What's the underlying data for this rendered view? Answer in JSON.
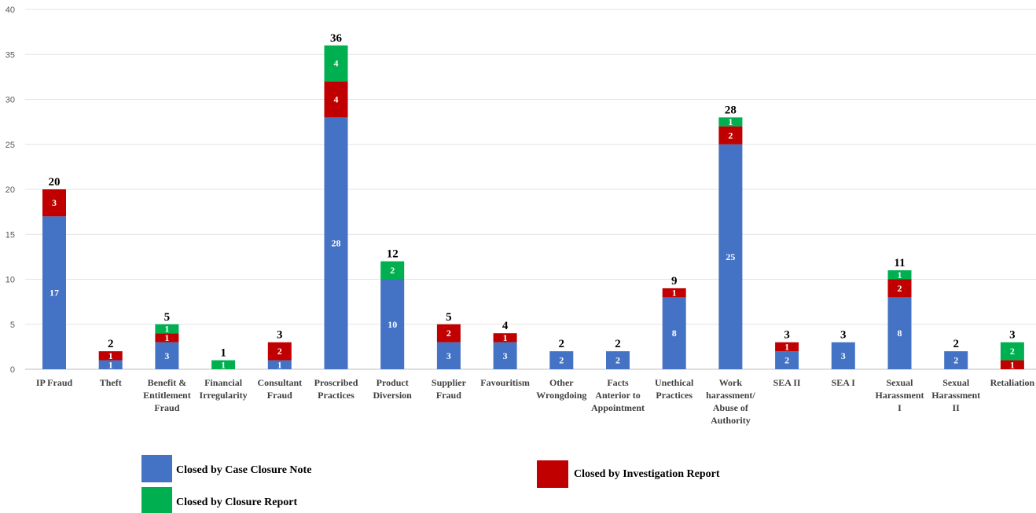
{
  "chart_data": {
    "type": "bar",
    "stacked": true,
    "title": "",
    "xlabel": "",
    "ylabel": "",
    "ylim": [
      0,
      40
    ],
    "yticks": [
      0,
      5,
      10,
      15,
      20,
      25,
      30,
      35,
      40
    ],
    "grid": true,
    "legend_position": "bottom",
    "categories": [
      [
        "IP Fraud"
      ],
      [
        "Theft"
      ],
      [
        "Benefit &",
        "Entitlement",
        "Fraud"
      ],
      [
        "Financial",
        "Irregularity"
      ],
      [
        "Consultant",
        "Fraud"
      ],
      [
        "Proscribed",
        "Practices"
      ],
      [
        "Product",
        "Diversion"
      ],
      [
        "Supplier",
        "Fraud"
      ],
      [
        "Favouritism"
      ],
      [
        "Other",
        "Wrongdoing"
      ],
      [
        "Facts",
        "Anterior to",
        "Appointment"
      ],
      [
        "Unethical",
        "Practices"
      ],
      [
        "Work",
        "harassment/",
        "Abuse of",
        "Authority"
      ],
      [
        "SEA II"
      ],
      [
        "SEA I"
      ],
      [
        "Sexual",
        "Harassment",
        "I"
      ],
      [
        "Sexual",
        "Harassment",
        "II"
      ],
      [
        "Retaliation"
      ]
    ],
    "series": [
      {
        "name": "Closed by Case Closure Note",
        "color": "#4472C4",
        "values": [
          17,
          1,
          3,
          0,
          1,
          28,
          10,
          3,
          3,
          2,
          2,
          8,
          25,
          2,
          3,
          8,
          2,
          0
        ]
      },
      {
        "name": "Closed by Investigation Report",
        "color": "#C00000",
        "values": [
          3,
          1,
          1,
          0,
          2,
          4,
          0,
          2,
          1,
          0,
          0,
          1,
          2,
          1,
          0,
          2,
          0,
          1
        ]
      },
      {
        "name": "Closed by Closure Report",
        "color": "#00B050",
        "values": [
          0,
          0,
          1,
          1,
          0,
          4,
          2,
          0,
          0,
          0,
          0,
          0,
          1,
          0,
          0,
          1,
          0,
          2
        ]
      }
    ],
    "totals": [
      20,
      2,
      5,
      1,
      3,
      36,
      12,
      5,
      4,
      2,
      2,
      9,
      28,
      3,
      3,
      11,
      2,
      3
    ]
  }
}
